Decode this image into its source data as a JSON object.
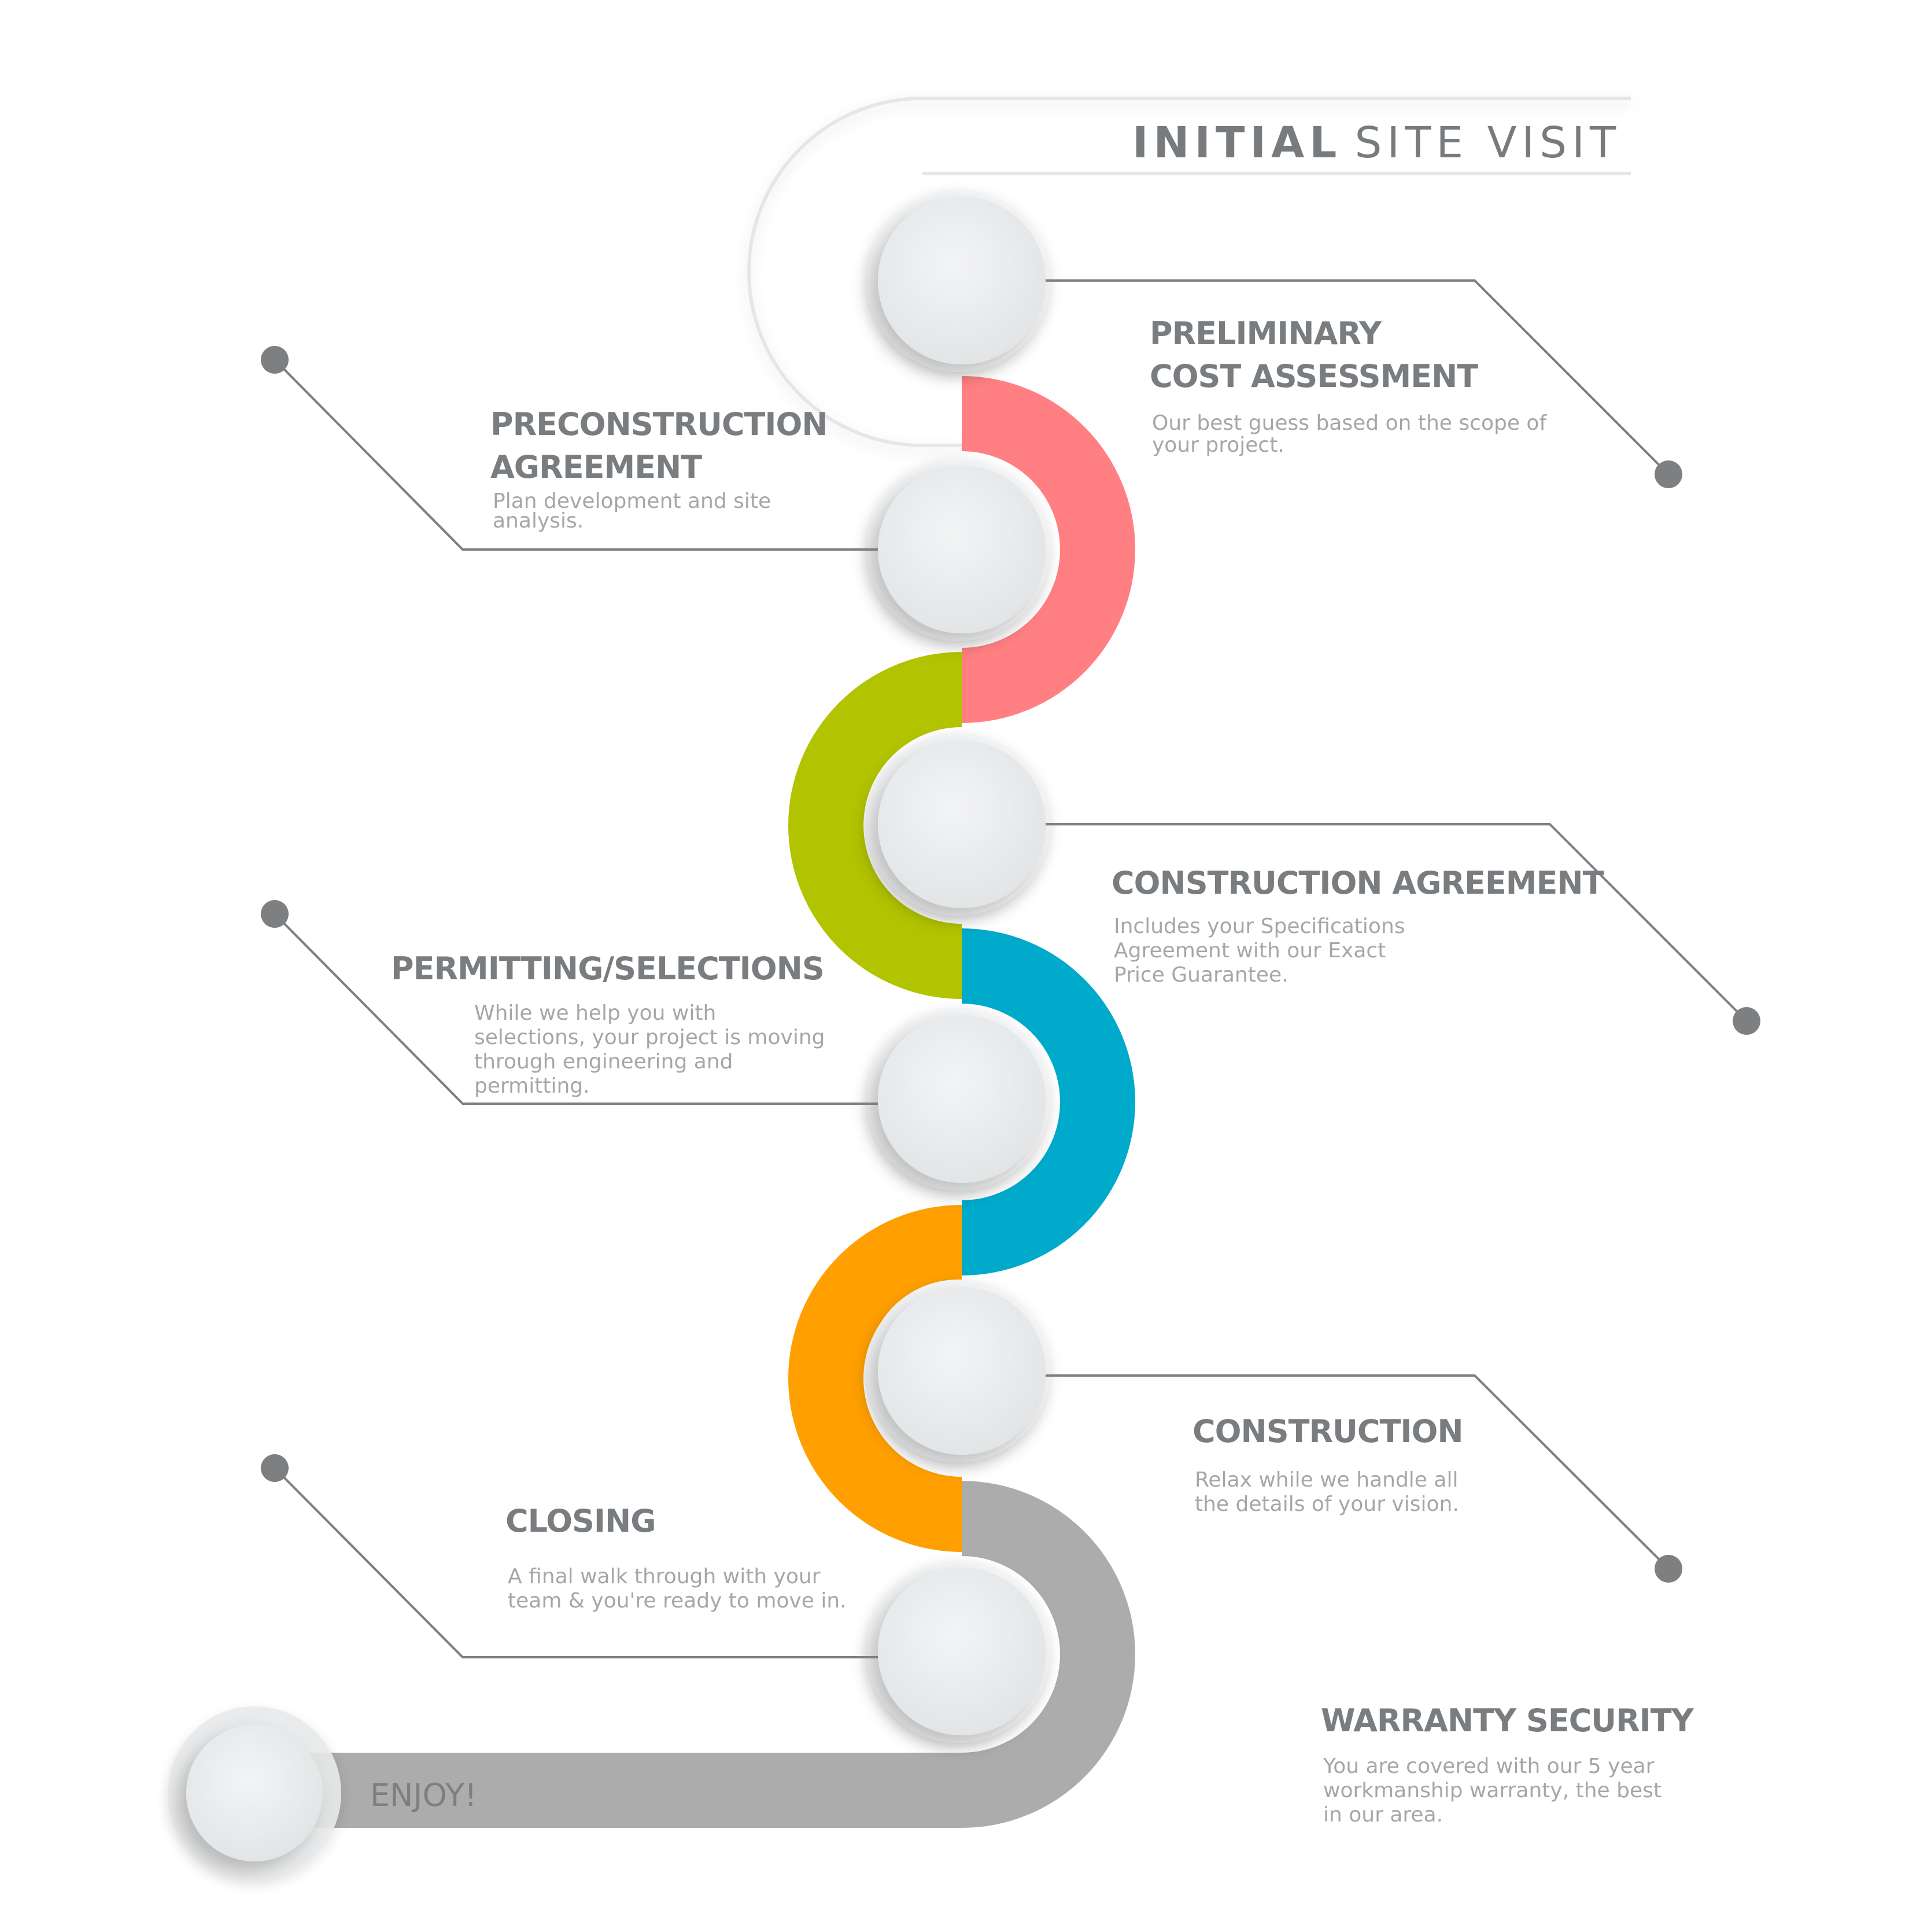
{
  "header": {
    "title_bold": "INITIAL",
    "title_rest": "SITE VISIT"
  },
  "colors": {
    "step1": "#ff7f82",
    "step2": "#b2c300",
    "step3": "#00aacb",
    "step4": "#ff9f00",
    "step5": "#acacac",
    "leader": "#7d7f81",
    "title": "#7a7d80",
    "description": "#a4a7aa"
  },
  "steps": [
    {
      "title_lines": [
        "PRELIMINARY",
        "COST ASSESSMENT"
      ],
      "desc_lines": [
        "Our best guess based on the scope of",
        "your project."
      ]
    },
    {
      "title_lines": [
        "PRECONSTRUCTION",
        "AGREEMENT"
      ],
      "desc_lines": [
        "Plan development and site",
        "analysis."
      ]
    },
    {
      "title_lines": [
        "CONSTRUCTION AGREEMENT"
      ],
      "desc_lines": [
        "Includes your Specifications",
        "Agreement with our Exact",
        "Price Guarantee."
      ]
    },
    {
      "title_lines": [
        "PERMITTING/SELECTIONS"
      ],
      "desc_lines": [
        "While we help you with",
        "selections, your project is moving",
        "through engineering and",
        "permitting."
      ]
    },
    {
      "title_lines": [
        "CONSTRUCTION"
      ],
      "desc_lines": [
        "Relax while we handle all",
        "the details of your vision."
      ]
    },
    {
      "title_lines": [
        "CLOSING"
      ],
      "desc_lines": [
        "A final walk through with your",
        "team & you're ready to move in."
      ]
    },
    {
      "title_lines": [
        "WARRANTY SECURITY"
      ],
      "desc_lines": [
        "You are covered with our 5 year",
        "workmanship warranty, the best",
        "in our area."
      ]
    }
  ],
  "footer": {
    "enjoy_label": "ENJOY!"
  }
}
